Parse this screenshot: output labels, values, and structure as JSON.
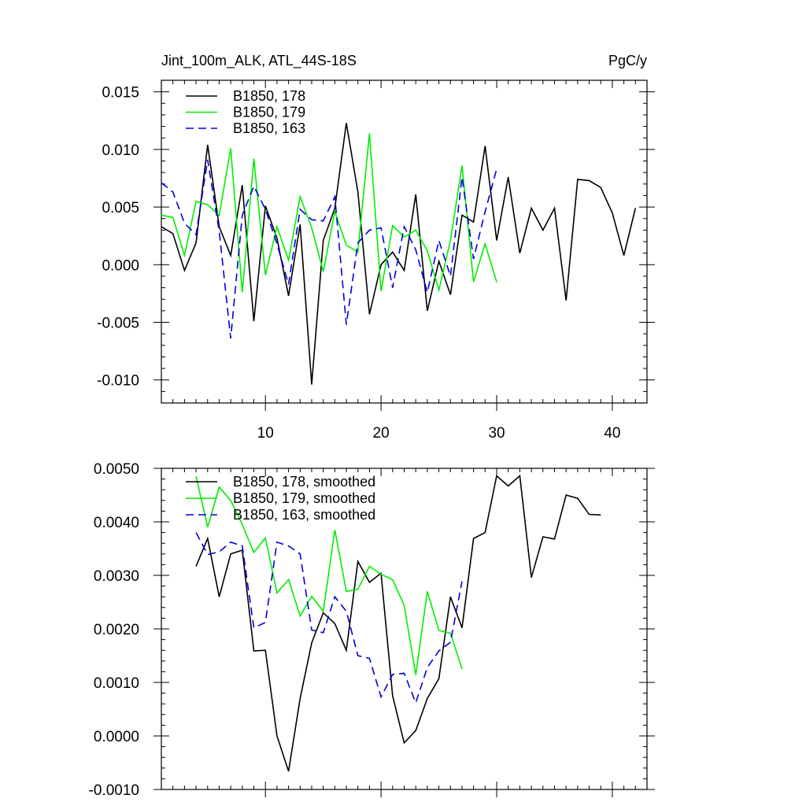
{
  "chart_data": [
    {
      "type": "line",
      "title_left": "Jint_100m_ALK, ATL_44S-18S",
      "title_right": "PgC/y",
      "xlabel": "",
      "ylabel": "",
      "xlim": [
        1,
        43
      ],
      "ylim": [
        -0.012,
        0.016
      ],
      "xticks": [
        10,
        20,
        30,
        40
      ],
      "xtick_labels": [
        "10",
        "20",
        "30",
        "40"
      ],
      "yticks": [
        -0.01,
        -0.005,
        0.0,
        0.005,
        0.01,
        0.015
      ],
      "ytick_labels": [
        "-0.010",
        "-0.005",
        "0.000",
        "0.005",
        "0.010",
        "0.015"
      ],
      "legend": "top-left",
      "grid": false,
      "series": [
        {
          "name": "B1850, 178",
          "color": "#000000",
          "dash": "solid",
          "x": [
            1,
            2,
            3,
            4,
            5,
            6,
            7,
            8,
            9,
            10,
            11,
            12,
            13,
            14,
            15,
            16,
            17,
            18,
            19,
            20,
            21,
            22,
            23,
            24,
            25,
            26,
            27,
            28,
            29,
            30,
            31,
            32,
            33,
            34,
            35,
            36,
            37,
            38,
            39,
            40,
            41,
            42
          ],
          "values": [
            0.0033,
            0.0027,
            -0.0005,
            0.0019,
            0.0104,
            0.0033,
            0.0008,
            0.0069,
            -0.0049,
            0.0051,
            0.0023,
            -0.0027,
            0.0035,
            -0.0104,
            0.0021,
            0.0049,
            0.0123,
            0.0063,
            -0.0043,
            0.0,
            0.0011,
            -0.0005,
            0.0061,
            -0.004,
            0.0003,
            -0.0026,
            0.0043,
            0.0037,
            0.0103,
            0.0021,
            0.0076,
            0.001,
            0.0049,
            0.003,
            0.0049,
            -0.0031,
            0.0074,
            0.0073,
            0.0067,
            0.0045,
            0.0008,
            0.0049
          ]
        },
        {
          "name": "B1850, 179",
          "color": "#00ee00",
          "dash": "solid",
          "x": [
            1,
            2,
            3,
            4,
            5,
            6,
            7,
            8,
            9,
            10,
            11,
            12,
            13,
            14,
            15,
            16,
            17,
            18,
            19,
            20,
            21,
            22,
            23,
            24,
            25,
            26,
            27,
            28,
            29,
            30
          ],
          "values": [
            0.0043,
            0.0041,
            0.0008,
            0.0055,
            0.0052,
            0.0043,
            0.0101,
            -0.0024,
            0.0092,
            -0.0009,
            0.0033,
            0.0004,
            0.0059,
            0.0032,
            -0.0006,
            0.0046,
            0.0017,
            0.0011,
            0.0114,
            -0.0023,
            0.0034,
            0.0024,
            0.003,
            0.0012,
            -0.0022,
            0.0021,
            0.0086,
            -0.0015,
            0.0018,
            -0.0015
          ]
        },
        {
          "name": "B1850, 163",
          "color": "#0000dd",
          "dash": "dashed",
          "x": [
            1,
            2,
            3,
            4,
            5,
            6,
            7,
            8,
            9,
            10,
            11,
            12,
            13,
            14,
            15,
            16,
            17,
            18,
            19,
            20,
            21,
            22,
            23,
            24,
            25,
            26,
            27,
            28,
            29,
            30
          ],
          "values": [
            0.0071,
            0.0063,
            0.0036,
            0.0026,
            0.0091,
            0.0029,
            -0.0064,
            0.0043,
            0.0068,
            0.0048,
            0.0018,
            -0.0017,
            0.0048,
            0.0039,
            0.0038,
            0.0059,
            -0.0052,
            0.0019,
            0.003,
            0.0032,
            -0.002,
            0.0033,
            0.0013,
            -0.0024,
            0.0021,
            -0.001,
            0.0076,
            0.0005,
            0.0046,
            0.0083
          ]
        }
      ]
    },
    {
      "type": "line",
      "xlabel": "",
      "ylabel": "",
      "xlim": [
        1,
        43
      ],
      "ylim": [
        -0.001,
        0.005
      ],
      "xticks": [
        10,
        20,
        30,
        40
      ],
      "xtick_labels": [],
      "yticks": [
        -0.001,
        0.0,
        0.001,
        0.002,
        0.003,
        0.004,
        0.005
      ],
      "ytick_labels": [
        "-0.0010",
        "0.0000",
        "0.0010",
        "0.0020",
        "0.0030",
        "0.0040",
        "0.0050"
      ],
      "legend": "top-left",
      "grid": false,
      "series": [
        {
          "name": "B1850, 178, smoothed",
          "color": "#000000",
          "dash": "solid",
          "x": [
            4,
            5,
            6,
            7,
            8,
            9,
            10,
            11,
            12,
            13,
            14,
            15,
            16,
            17,
            18,
            19,
            20,
            21,
            22,
            23,
            24,
            25,
            26,
            27,
            28,
            29,
            30,
            31,
            32,
            33,
            34,
            35,
            36,
            37,
            38,
            39
          ],
          "values": [
            0.00317,
            0.00369,
            0.0026,
            0.0034,
            0.00347,
            0.00159,
            0.0016,
            0.0,
            -0.00066,
            0.0007,
            0.00174,
            0.0023,
            0.0021,
            0.0016,
            0.00326,
            0.00287,
            0.00304,
            0.00075,
            -0.00013,
            0.0001,
            0.0007,
            0.00107,
            0.0026,
            0.00202,
            0.00369,
            0.0038,
            0.00486,
            0.00467,
            0.00486,
            0.00296,
            0.00372,
            0.00368,
            0.0045,
            0.00444,
            0.00414,
            0.00413
          ]
        },
        {
          "name": "B1850, 179, smoothed",
          "color": "#00ee00",
          "dash": "solid",
          "x": [
            4,
            5,
            6,
            7,
            8,
            9,
            10,
            11,
            12,
            13,
            14,
            15,
            16,
            17,
            18,
            19,
            20,
            21,
            22,
            23,
            24,
            25,
            26,
            27
          ],
          "values": [
            0.00485,
            0.0039,
            0.00465,
            0.0044,
            0.00395,
            0.00343,
            0.0037,
            0.00267,
            0.00292,
            0.00224,
            0.00261,
            0.00233,
            0.00385,
            0.0027,
            0.00274,
            0.00317,
            0.00302,
            0.00292,
            0.00244,
            0.00114,
            0.0027,
            0.00197,
            0.00192,
            0.00125
          ]
        },
        {
          "name": "B1850, 163, smoothed",
          "color": "#0000dd",
          "dash": "dashed",
          "x": [
            4,
            5,
            6,
            7,
            8,
            9,
            10,
            11,
            12,
            13,
            14,
            15,
            16,
            17,
            18,
            19,
            20,
            21,
            22,
            23,
            24,
            25,
            26,
            27
          ],
          "values": [
            0.0038,
            0.00339,
            0.00344,
            0.00362,
            0.00355,
            0.00202,
            0.00212,
            0.00362,
            0.00355,
            0.0034,
            0.00198,
            0.00193,
            0.0026,
            0.00233,
            0.0015,
            0.00145,
            0.00073,
            0.00115,
            0.00117,
            0.00062,
            0.00128,
            0.00159,
            0.00175,
            0.00289
          ]
        }
      ]
    }
  ]
}
